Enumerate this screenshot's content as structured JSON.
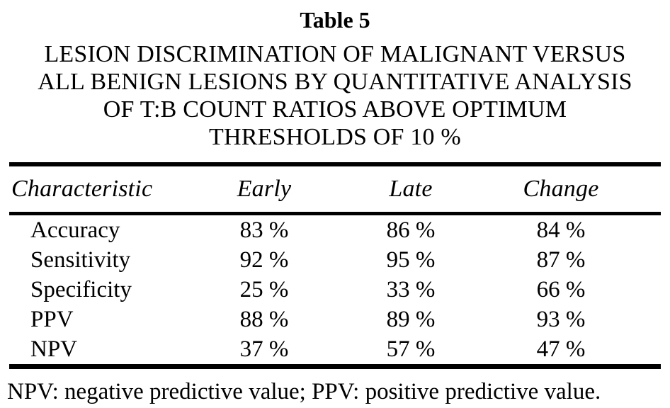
{
  "page": {
    "title": "Table 5",
    "caption_lines": [
      "LESION DISCRIMINATION OF MALIGNANT VERSUS",
      "ALL BENIGN LESIONS BY QUANTITATIVE ANALYSIS",
      "OF T:B COUNT RATIOS ABOVE OPTIMUM",
      "THRESHOLDS OF 10 %"
    ]
  },
  "table": {
    "columns": {
      "characteristic": "Characteristic",
      "early": "Early",
      "late": "Late",
      "change": "Change"
    },
    "rows": [
      {
        "label": "Accuracy",
        "early": "83 %",
        "late": "86 %",
        "change": "84 %"
      },
      {
        "label": "Sensitivity",
        "early": "92 %",
        "late": "95 %",
        "change": "87 %"
      },
      {
        "label": "Specificity",
        "early": "25 %",
        "late": "33 %",
        "change": "66 %"
      },
      {
        "label": "PPV",
        "early": "88 %",
        "late": "89 %",
        "change": "93 %"
      },
      {
        "label": "NPV",
        "early": "37 %",
        "late": "57 %",
        "change": "47 %"
      }
    ],
    "footnote": "NPV: negative predictive value; PPV: positive predictive value."
  },
  "colors": {
    "background": "#ffffff",
    "text": "#000000",
    "rule": "#000000"
  }
}
